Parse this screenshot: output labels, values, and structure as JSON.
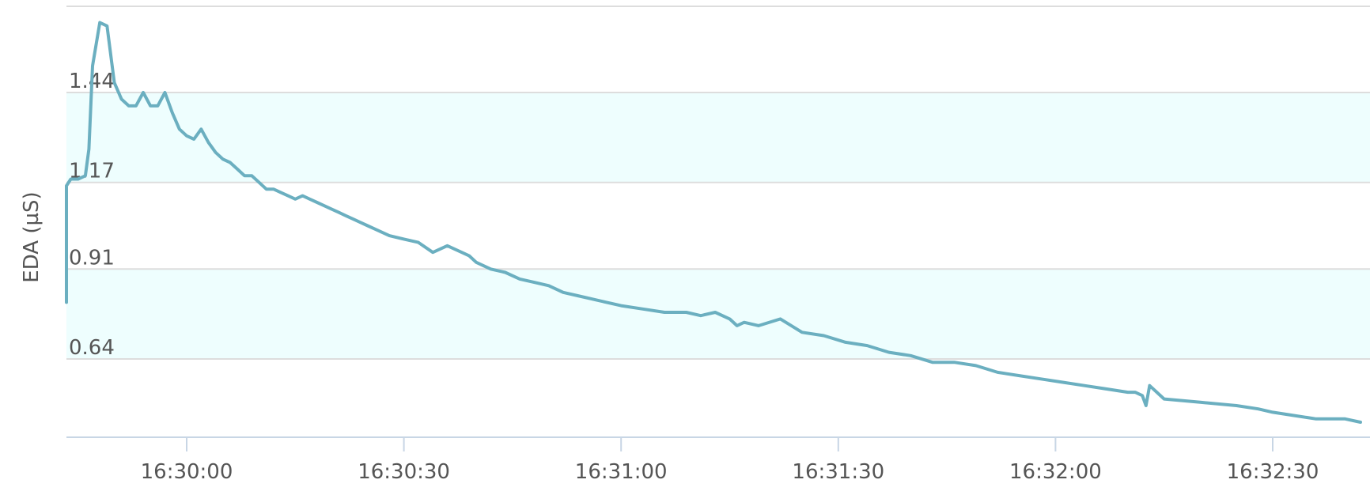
{
  "chart_data": {
    "type": "line",
    "title": "",
    "xlabel": "",
    "ylabel": "EDA (µS)",
    "ylim": [
      0.41,
      1.7
    ],
    "xlim": [
      "16:29:43",
      "16:32:45"
    ],
    "x_ticks": [
      "16:30:00",
      "16:30:30",
      "16:31:00",
      "16:31:30",
      "16:32:00",
      "16:32:30"
    ],
    "y_ticks": [
      "1.44",
      "1.17",
      "0.91",
      "0.64"
    ],
    "grid": true,
    "legend": "none",
    "bands": [
      {
        "from": 1.17,
        "to": 1.44
      },
      {
        "from": 0.64,
        "to": 0.91
      }
    ],
    "colors": {
      "line": "#6BAFC0",
      "band": "#EEFEFE",
      "grid": "#DDDDDD",
      "axis": "#C8D6E5",
      "text": "#555555"
    },
    "series": [
      {
        "x": [
          "16:29:43",
          "16:29:43.3",
          "16:29:44",
          "16:29:45",
          "16:29:46",
          "16:29:46.5",
          "16:29:47",
          "16:29:48",
          "16:29:49",
          "16:29:50",
          "16:29:51",
          "16:29:52",
          "16:29:53",
          "16:29:54",
          "16:29:55",
          "16:29:56",
          "16:29:57",
          "16:29:58",
          "16:29:59",
          "16:30:00",
          "16:30:01",
          "16:30:02",
          "16:30:03",
          "16:30:04",
          "16:30:05",
          "16:30:06",
          "16:30:07",
          "16:30:08",
          "16:30:09",
          "16:30:10",
          "16:30:11",
          "16:30:12",
          "16:30:13",
          "16:30:14",
          "16:30:15",
          "16:30:16",
          "16:30:17",
          "16:30:18",
          "16:30:19",
          "16:30:20",
          "16:30:21",
          "16:30:22",
          "16:30:23",
          "16:30:24",
          "16:30:25",
          "16:30:26",
          "16:30:28",
          "16:30:30",
          "16:30:32",
          "16:30:34",
          "16:30:36",
          "16:30:38",
          "16:30:39",
          "16:30:40",
          "16:30:42",
          "16:30:44",
          "16:30:46",
          "16:30:48",
          "16:30:50",
          "16:30:52",
          "16:30:54",
          "16:30:56",
          "16:30:58",
          "16:31:00",
          "16:31:03",
          "16:31:06",
          "16:31:09",
          "16:31:11",
          "16:31:13",
          "16:31:15",
          "16:31:16",
          "16:31:17",
          "16:31:19",
          "16:31:22",
          "16:31:25",
          "16:31:28",
          "16:31:31",
          "16:31:34",
          "16:31:37",
          "16:31:40",
          "16:31:43",
          "16:31:46",
          "16:31:49",
          "16:31:52",
          "16:31:55",
          "16:31:58",
          "16:32:01",
          "16:32:04",
          "16:32:07",
          "16:32:10",
          "16:32:11",
          "16:32:12",
          "16:32:15",
          "16:32:20",
          "16:32:25",
          "16:32:28",
          "16:32:30",
          "16:32:33",
          "16:32:36",
          "16:32:40",
          "16:32:44"
        ],
        "y": [
          0.81,
          1.16,
          1.18,
          1.18,
          1.19,
          1.27,
          1.52,
          1.65,
          1.64,
          1.47,
          1.42,
          1.4,
          1.4,
          1.44,
          1.4,
          1.4,
          1.44,
          1.38,
          1.33,
          1.31,
          1.3,
          1.33,
          1.29,
          1.26,
          1.24,
          1.23,
          1.21,
          1.19,
          1.19,
          1.17,
          1.15,
          1.15,
          1.14,
          1.13,
          1.12,
          1.13,
          1.12,
          1.11,
          1.1,
          1.09,
          1.08,
          1.07,
          1.06,
          1.05,
          1.04,
          1.03,
          1.01,
          1.0,
          0.99,
          0.96,
          0.98,
          0.96,
          0.95,
          0.93,
          0.91,
          0.9,
          0.88,
          0.87,
          0.86,
          0.84,
          0.83,
          0.82,
          0.81,
          0.8,
          0.79,
          0.78,
          0.78,
          0.77,
          0.78,
          0.76,
          0.74,
          0.75,
          0.74,
          0.76,
          0.72,
          0.71,
          0.69,
          0.68,
          0.66,
          0.65,
          0.63,
          0.63,
          0.62,
          0.6,
          0.59,
          0.58,
          0.57,
          0.56,
          0.55,
          0.54,
          0.54,
          0.53,
          0.52,
          0.51,
          0.5,
          0.49,
          0.48,
          0.47,
          0.46,
          0.46,
          0.45
        ],
        "spikes": [
          {
            "x": "16:32:13",
            "y": 0.56
          },
          {
            "x": "16:32:12.5",
            "y": 0.5
          }
        ]
      }
    ]
  }
}
